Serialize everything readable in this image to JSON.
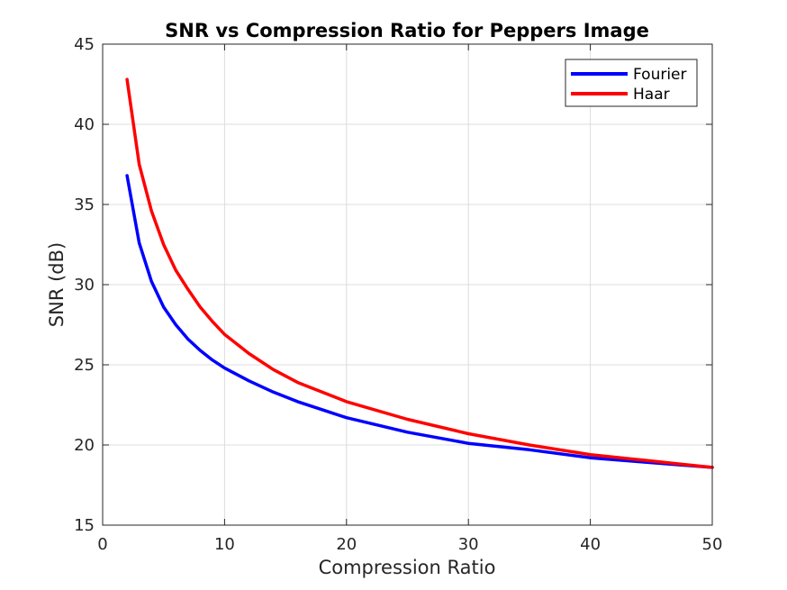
{
  "chart_data": {
    "type": "line",
    "title": "SNR vs Compression Ratio for Peppers Image",
    "xlabel": "Compression Ratio",
    "ylabel": "SNR (dB)",
    "xlim": [
      0,
      50
    ],
    "ylim": [
      15,
      45
    ],
    "xticks": [
      0,
      10,
      20,
      30,
      40,
      50
    ],
    "yticks": [
      15,
      20,
      25,
      30,
      35,
      40,
      45
    ],
    "grid": true,
    "legend_position": "top-right",
    "series": [
      {
        "name": "Fourier",
        "color": "#0000ff",
        "x": [
          2,
          3,
          4,
          5,
          6,
          7,
          8,
          9,
          10,
          12,
          14,
          16,
          18,
          20,
          25,
          30,
          35,
          40,
          45,
          50
        ],
        "y": [
          36.8,
          32.6,
          30.2,
          28.6,
          27.5,
          26.6,
          25.9,
          25.3,
          24.8,
          24.0,
          23.3,
          22.7,
          22.2,
          21.7,
          20.8,
          20.1,
          19.7,
          19.2,
          18.9,
          18.6
        ]
      },
      {
        "name": "Haar",
        "color": "#ff0000",
        "x": [
          2,
          3,
          4,
          5,
          6,
          7,
          8,
          9,
          10,
          12,
          14,
          16,
          18,
          20,
          25,
          30,
          35,
          40,
          45,
          50
        ],
        "y": [
          42.8,
          37.5,
          34.6,
          32.5,
          30.9,
          29.7,
          28.6,
          27.7,
          26.9,
          25.7,
          24.7,
          23.9,
          23.3,
          22.7,
          21.6,
          20.7,
          20.0,
          19.4,
          19.0,
          18.6
        ]
      }
    ]
  }
}
